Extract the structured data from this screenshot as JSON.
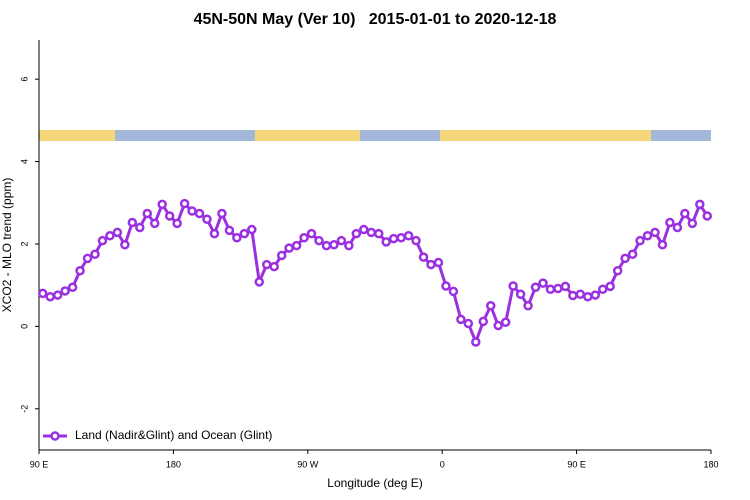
{
  "chart_data": {
    "type": "line",
    "title": "45N-50N May (Ver 10)   2015-01-01 to 2020-12-18",
    "x_label": "Longitude (deg E)",
    "y_label": "XCO2 - MLO trend (ppm)",
    "xlim": [
      90,
      540
    ],
    "xticks": [
      {
        "value": 90,
        "label": "90 E"
      },
      180,
      {
        "value": 270,
        "label": "90 W"
      },
      {
        "value": 360,
        "label": "0"
      },
      {
        "value": 450,
        "label": "90 E"
      },
      {
        "value": 540,
        "label": "180"
      }
    ],
    "ylim": [
      -3,
      6.95
    ],
    "yticks": [
      -2,
      0,
      2,
      4,
      6
    ],
    "legend": "bottom-left",
    "x": [
      92.5,
      97.5,
      102.5,
      107.5,
      112.5,
      117.5,
      122.5,
      127.5,
      132.5,
      137.5,
      142.5,
      147.5,
      152.5,
      157.5,
      162.5,
      167.5,
      172.5,
      177.5,
      182.5,
      187.5,
      192.5,
      197.5,
      202.5,
      207.5,
      212.5,
      217.5,
      222.5,
      227.5,
      232.5,
      237.5,
      242.5,
      247.5,
      252.5,
      257.5,
      262.5,
      267.5,
      272.5,
      277.5,
      282.5,
      287.5,
      292.5,
      297.5,
      302.5,
      307.5,
      312.5,
      317.5,
      322.5,
      327.5,
      332.5,
      337.5,
      342.5,
      347.5,
      352.5,
      357.5,
      362.5,
      367.5,
      372.5,
      377.5,
      382.5,
      387.5,
      392.5,
      397.5,
      402.5,
      407.5,
      412.5,
      417.5,
      422.5,
      427.5,
      432.5,
      437.5,
      442.5,
      447.5,
      452.5,
      457.5,
      462.5,
      467.5,
      472.5,
      477.5,
      482.5,
      487.5,
      492.5,
      497.5,
      502.5,
      507.5,
      512.5,
      517.5,
      522.5,
      527.5,
      532.5,
      537.5
    ],
    "series": [
      {
        "name": "Land (Nadir&Glint) and Ocean (Glint)",
        "color": "#9b30e0",
        "values": [
          0.8,
          0.72,
          0.76,
          0.86,
          0.95,
          1.35,
          1.65,
          1.75,
          2.08,
          2.2,
          2.28,
          1.98,
          2.52,
          2.4,
          2.74,
          2.5,
          2.96,
          2.68,
          2.5,
          2.98,
          2.8,
          2.74,
          2.6,
          2.25,
          2.74,
          2.33,
          2.15,
          2.25,
          2.35,
          1.08,
          1.5,
          1.45,
          1.72,
          1.9,
          1.96,
          2.15,
          2.25,
          2.08,
          1.96,
          1.98,
          2.08,
          1.96,
          2.25,
          2.35,
          2.28,
          2.25,
          2.05,
          2.13,
          2.15,
          2.2,
          2.08,
          1.68,
          1.5,
          1.55,
          0.98,
          0.85,
          0.17,
          0.07,
          -0.38,
          0.12,
          0.5,
          0.02,
          0.1,
          0.98,
          0.78,
          0.5,
          0.95,
          1.05,
          0.9,
          0.92,
          0.97,
          0.75,
          0.78,
          0.72,
          0.76,
          0.9,
          0.97,
          1.35,
          1.65,
          1.75,
          2.08,
          2.2,
          2.28,
          1.98,
          2.52,
          2.4,
          2.74,
          2.5,
          2.96,
          2.68
        ]
      }
    ]
  }
}
